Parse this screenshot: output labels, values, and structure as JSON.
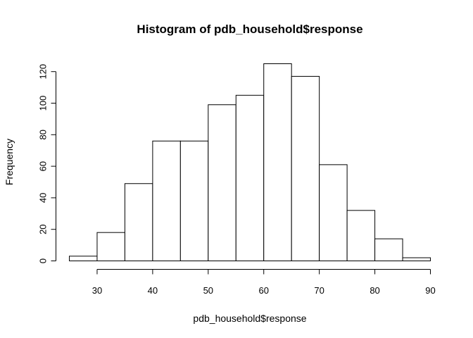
{
  "chart_data": {
    "type": "bar",
    "title": "Histogram of pdb_household$response",
    "xlabel": "pdb_household$response",
    "ylabel": "Frequency",
    "bins": [
      {
        "start": 25,
        "end": 30,
        "count": 3
      },
      {
        "start": 30,
        "end": 35,
        "count": 18
      },
      {
        "start": 35,
        "end": 40,
        "count": 49
      },
      {
        "start": 40,
        "end": 45,
        "count": 76
      },
      {
        "start": 45,
        "end": 50,
        "count": 76
      },
      {
        "start": 50,
        "end": 55,
        "count": 99
      },
      {
        "start": 55,
        "end": 60,
        "count": 105
      },
      {
        "start": 60,
        "end": 65,
        "count": 125
      },
      {
        "start": 65,
        "end": 70,
        "count": 117
      },
      {
        "start": 70,
        "end": 75,
        "count": 61
      },
      {
        "start": 75,
        "end": 80,
        "count": 32
      },
      {
        "start": 80,
        "end": 85,
        "count": 14
      },
      {
        "start": 85,
        "end": 90,
        "count": 2
      }
    ],
    "xlim": [
      25,
      90
    ],
    "ylim": [
      0,
      125
    ],
    "x_ticks": [
      "30",
      "40",
      "50",
      "60",
      "70",
      "80",
      "90"
    ],
    "y_ticks": [
      "0",
      "20",
      "40",
      "60",
      "80",
      "100",
      "120"
    ],
    "grid": false,
    "bar_fill": "#ffffff",
    "bar_stroke": "#000000"
  }
}
